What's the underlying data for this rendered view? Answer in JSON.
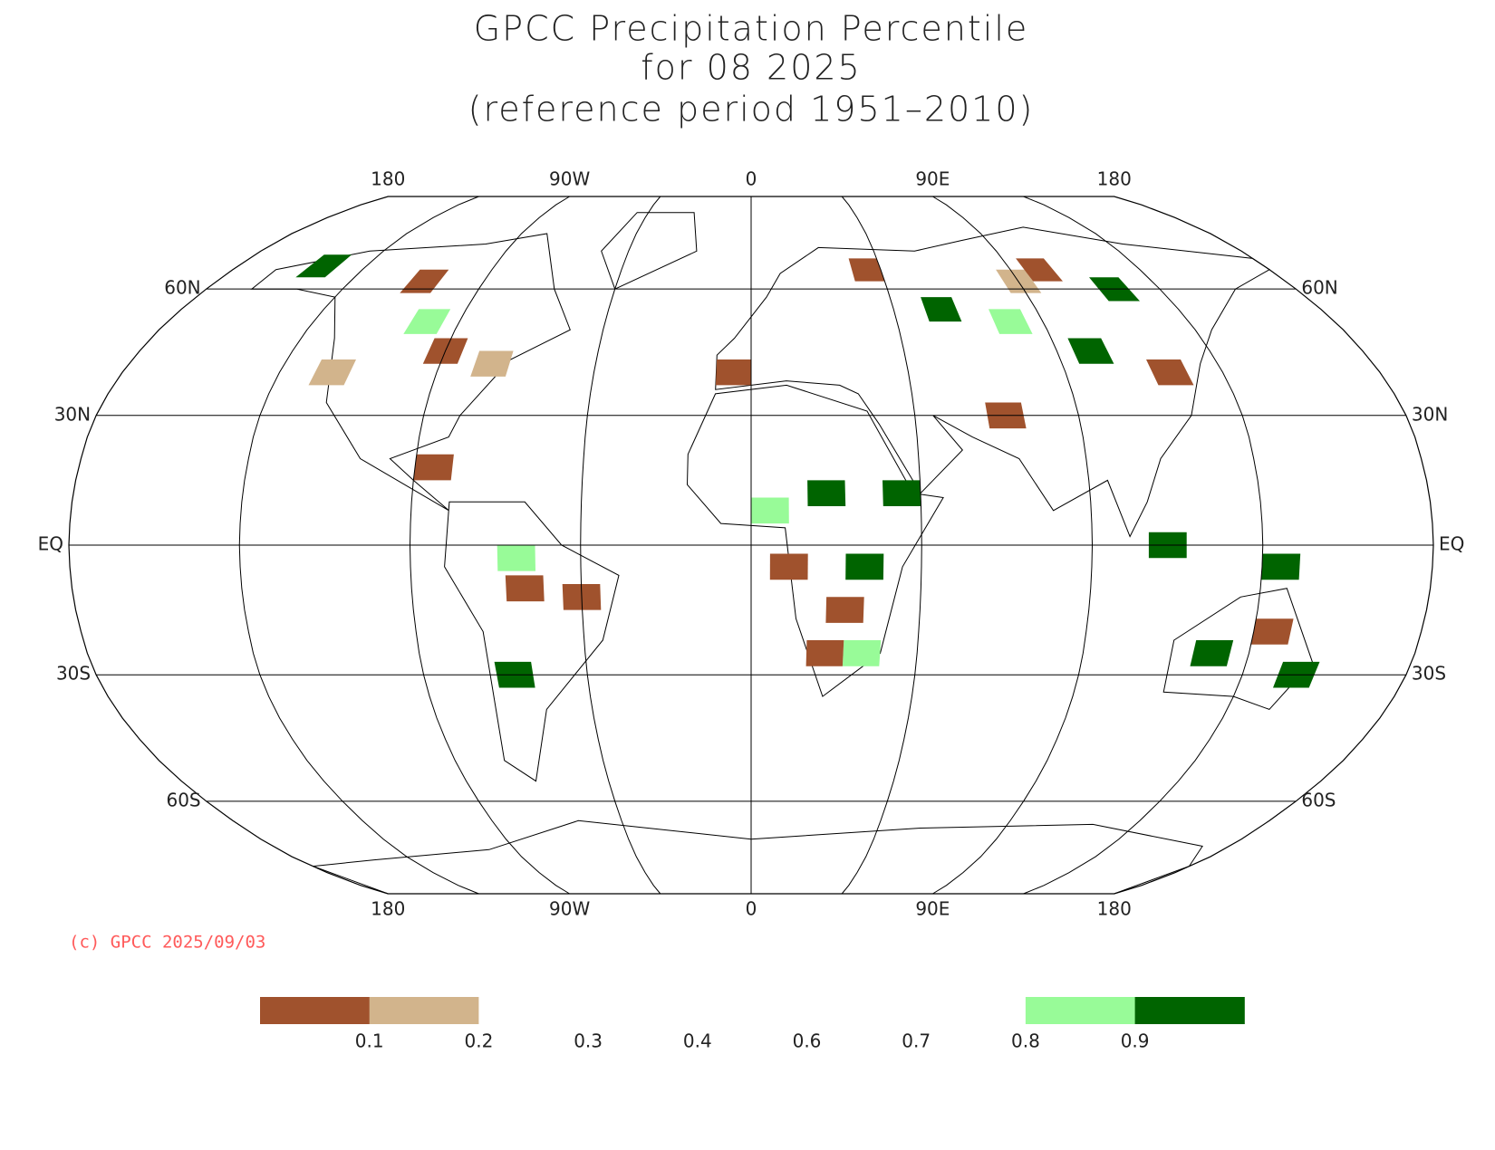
{
  "title": [
    "GPCC Precipitation Percentile",
    "for 08 2025",
    "(reference period 1951–2010)"
  ],
  "lon_labels": [
    "180",
    "90W",
    "0",
    "90E",
    "180"
  ],
  "lat_labels": [
    "60N",
    "30N",
    "EQ",
    "30S",
    "60S"
  ],
  "credit": "(c) GPCC 2025/09/03",
  "legend": {
    "colors": [
      "#a0522d",
      "#d2b48c",
      "#ffffff",
      "#ffffff",
      "#ffffff",
      "#ffffff",
      "#ffffff",
      "#98fb98",
      "#006400"
    ],
    "labels": [
      "0.1",
      "0.2",
      "0.3",
      "0.4",
      "0.6",
      "0.7",
      "0.8",
      "0.9"
    ]
  }
}
